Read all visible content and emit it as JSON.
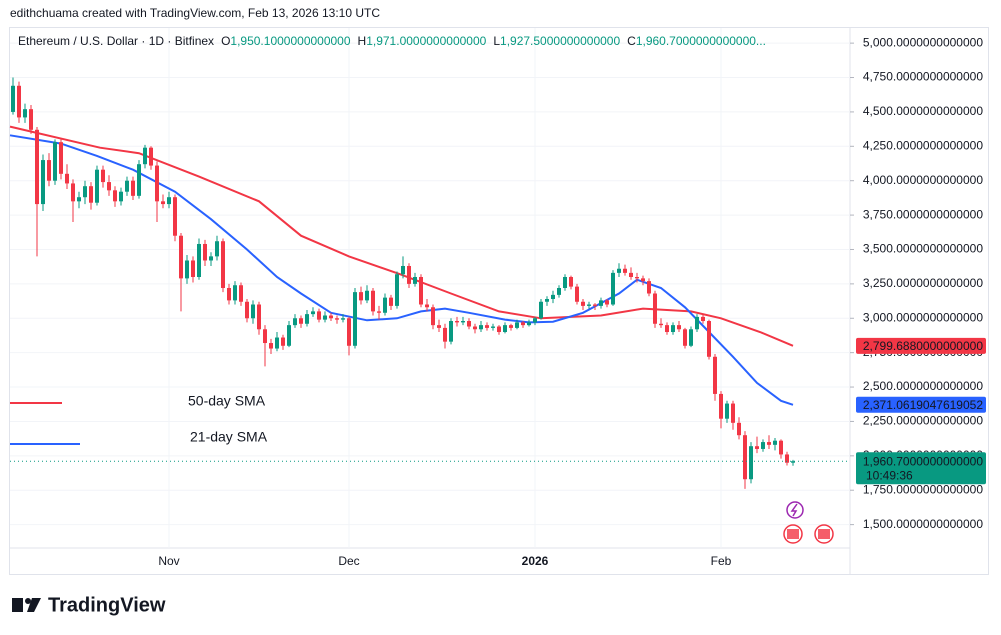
{
  "chart_data": {
    "type": "candlestick",
    "attribution": "edithchuama created with TradingView.com, Feb 13, 2026 13:10 UTC",
    "title": "Ethereum / U.S. Dollar · 1D · Bitfinex",
    "ohlc_header": [
      {
        "label": "O",
        "value": "1,950.1000000000000"
      },
      {
        "label": "H",
        "value": "1,971.0000000000000"
      },
      {
        "label": "L",
        "value": "1,927.5000000000000"
      },
      {
        "label": "C",
        "value": "1,960.7000000000000..."
      }
    ],
    "logo": "TradingView",
    "up_color": "#089981",
    "down_color": "#f23645",
    "grid": true,
    "xlim": [
      -0.5,
      139.5
    ],
    "xticks": [
      {
        "value": 26,
        "label": "Nov"
      },
      {
        "value": 56,
        "label": "Dec"
      },
      {
        "value": 87,
        "label": "2026"
      },
      {
        "value": 118,
        "label": "Feb"
      }
    ],
    "ylim": [
      1330,
      5110
    ],
    "yticks": [
      {
        "value": 5000,
        "label": "5,000.0000000000000"
      },
      {
        "value": 4750,
        "label": "4,750.0000000000000"
      },
      {
        "value": 4500,
        "label": "4,500.0000000000000"
      },
      {
        "value": 4250,
        "label": "4,250.0000000000000"
      },
      {
        "value": 4000,
        "label": "4,000.0000000000000"
      },
      {
        "value": 3750,
        "label": "3,750.0000000000000"
      },
      {
        "value": 3500,
        "label": "3,500.0000000000000"
      },
      {
        "value": 3250,
        "label": "3,250.0000000000000"
      },
      {
        "value": 3000,
        "label": "3,000.0000000000000"
      },
      {
        "value": 2750,
        "label": "2,750.0000000000000"
      },
      {
        "value": 2500,
        "label": "2,500.0000000000000"
      },
      {
        "value": 2250,
        "label": "2,250.0000000000000"
      },
      {
        "value": 2000,
        "label": "2,000.0000000000000"
      },
      {
        "value": 1750,
        "label": "1,750.0000000000000"
      },
      {
        "value": 1500,
        "label": "1,500.0000000000000"
      }
    ],
    "candles": [
      [
        4500,
        4750,
        4480,
        4690
      ],
      [
        4690,
        4720,
        4420,
        4460
      ],
      [
        4460,
        4560,
        4420,
        4520
      ],
      [
        4520,
        4550,
        4340,
        4370
      ],
      [
        4370,
        4390,
        3450,
        3830
      ],
      [
        3830,
        4190,
        3780,
        4150
      ],
      [
        4150,
        4200,
        3960,
        4000
      ],
      [
        4000,
        4300,
        3970,
        4280
      ],
      [
        4280,
        4300,
        4010,
        4050
      ],
      [
        4050,
        4120,
        3940,
        3980
      ],
      [
        3980,
        4010,
        3700,
        3850
      ],
      [
        3850,
        3920,
        3800,
        3880
      ],
      [
        3880,
        4000,
        3830,
        3960
      ],
      [
        3960,
        3990,
        3790,
        3840
      ],
      [
        3840,
        4110,
        3820,
        4080
      ],
      [
        4080,
        4110,
        3950,
        3990
      ],
      [
        3990,
        4040,
        3890,
        3930
      ],
      [
        3930,
        3960,
        3810,
        3850
      ],
      [
        3850,
        3950,
        3820,
        3920
      ],
      [
        3920,
        4030,
        3890,
        4000
      ],
      [
        4000,
        4030,
        3860,
        3890
      ],
      [
        3890,
        4150,
        3870,
        4120
      ],
      [
        4120,
        4260,
        4090,
        4240
      ],
      [
        4240,
        4250,
        4080,
        4110
      ],
      [
        4110,
        4140,
        3700,
        3850
      ],
      [
        3850,
        3900,
        3800,
        3830
      ],
      [
        3830,
        3920,
        3800,
        3880
      ],
      [
        3880,
        3900,
        3560,
        3600
      ],
      [
        3600,
        3620,
        3050,
        3290
      ],
      [
        3290,
        3460,
        3250,
        3420
      ],
      [
        3420,
        3450,
        3260,
        3300
      ],
      [
        3300,
        3580,
        3280,
        3540
      ],
      [
        3540,
        3570,
        3380,
        3420
      ],
      [
        3420,
        3480,
        3380,
        3450
      ],
      [
        3450,
        3600,
        3420,
        3560
      ],
      [
        3560,
        3580,
        3190,
        3220
      ],
      [
        3220,
        3250,
        3100,
        3130
      ],
      [
        3130,
        3270,
        3100,
        3240
      ],
      [
        3240,
        3260,
        3090,
        3120
      ],
      [
        3120,
        3140,
        2970,
        3000
      ],
      [
        3000,
        3130,
        2960,
        3100
      ],
      [
        3100,
        3120,
        2880,
        2920
      ],
      [
        2920,
        2950,
        2650,
        2820
      ],
      [
        2820,
        2850,
        2740,
        2780
      ],
      [
        2780,
        2900,
        2760,
        2860
      ],
      [
        2860,
        2880,
        2770,
        2800
      ],
      [
        2800,
        2980,
        2790,
        2950
      ],
      [
        2950,
        3030,
        2930,
        3000
      ],
      [
        3000,
        3020,
        2930,
        2960
      ],
      [
        2960,
        3060,
        2940,
        3030
      ],
      [
        3030,
        3080,
        3010,
        3050
      ],
      [
        3050,
        3070,
        2970,
        2990
      ],
      [
        2990,
        3050,
        2970,
        3020
      ],
      [
        3020,
        3040,
        2980,
        3000
      ],
      [
        3000,
        3020,
        2960,
        2990
      ],
      [
        2990,
        3030,
        2970,
        3000
      ],
      [
        3000,
        3010,
        2730,
        2800
      ],
      [
        2800,
        3220,
        2780,
        3190
      ],
      [
        3190,
        3230,
        3100,
        3130
      ],
      [
        3130,
        3240,
        3110,
        3200
      ],
      [
        3200,
        3220,
        3020,
        3050
      ],
      [
        3050,
        3090,
        2990,
        3040
      ],
      [
        3040,
        3180,
        3020,
        3150
      ],
      [
        3150,
        3170,
        3060,
        3090
      ],
      [
        3090,
        3340,
        3070,
        3320
      ],
      [
        3320,
        3450,
        3290,
        3380
      ],
      [
        3380,
        3400,
        3220,
        3250
      ],
      [
        3250,
        3330,
        3230,
        3300
      ],
      [
        3300,
        3320,
        3080,
        3100
      ],
      [
        3100,
        3140,
        3050,
        3080
      ],
      [
        3080,
        3100,
        2920,
        2950
      ],
      [
        2950,
        2990,
        2900,
        2930
      ],
      [
        2930,
        2960,
        2780,
        2830
      ],
      [
        2830,
        3000,
        2810,
        2980
      ],
      [
        2980,
        3010,
        2940,
        2970
      ],
      [
        2970,
        3010,
        2950,
        2980
      ],
      [
        2980,
        3000,
        2920,
        2940
      ],
      [
        2940,
        2960,
        2890,
        2920
      ],
      [
        2920,
        2980,
        2900,
        2950
      ],
      [
        2950,
        2970,
        2910,
        2930
      ],
      [
        2930,
        2960,
        2910,
        2940
      ],
      [
        2940,
        2950,
        2880,
        2900
      ],
      [
        2900,
        2970,
        2890,
        2950
      ],
      [
        2950,
        2960,
        2910,
        2930
      ],
      [
        2930,
        2990,
        2920,
        2970
      ],
      [
        2970,
        2980,
        2930,
        2950
      ],
      [
        2950,
        2990,
        2940,
        2970
      ],
      [
        2970,
        3010,
        2950,
        3000
      ],
      [
        3000,
        3140,
        2990,
        3120
      ],
      [
        3120,
        3160,
        3090,
        3140
      ],
      [
        3140,
        3200,
        3110,
        3170
      ],
      [
        3170,
        3240,
        3150,
        3220
      ],
      [
        3220,
        3320,
        3200,
        3300
      ],
      [
        3300,
        3310,
        3210,
        3230
      ],
      [
        3230,
        3250,
        3100,
        3120
      ],
      [
        3120,
        3140,
        3060,
        3090
      ],
      [
        3090,
        3120,
        3070,
        3100
      ],
      [
        3100,
        3110,
        3060,
        3090
      ],
      [
        3090,
        3150,
        3070,
        3130
      ],
      [
        3130,
        3140,
        3080,
        3100
      ],
      [
        3100,
        3350,
        3090,
        3330
      ],
      [
        3330,
        3400,
        3300,
        3360
      ],
      [
        3360,
        3390,
        3310,
        3330
      ],
      [
        3330,
        3370,
        3280,
        3300
      ],
      [
        3300,
        3330,
        3260,
        3290
      ],
      [
        3290,
        3310,
        3240,
        3270
      ],
      [
        3270,
        3290,
        3160,
        3180
      ],
      [
        3180,
        3200,
        2930,
        2960
      ],
      [
        2960,
        3000,
        2930,
        2950
      ],
      [
        2950,
        2970,
        2880,
        2900
      ],
      [
        2900,
        2970,
        2880,
        2950
      ],
      [
        2950,
        2980,
        2900,
        2920
      ],
      [
        2920,
        2930,
        2780,
        2800
      ],
      [
        2800,
        2940,
        2790,
        2920
      ],
      [
        2920,
        3030,
        2900,
        3010
      ],
      [
        3010,
        3030,
        2960,
        2980
      ],
      [
        2980,
        2990,
        2700,
        2720
      ],
      [
        2720,
        2740,
        2400,
        2450
      ],
      [
        2450,
        2470,
        2200,
        2270
      ],
      [
        2270,
        2400,
        2240,
        2380
      ],
      [
        2380,
        2400,
        2190,
        2240
      ],
      [
        2240,
        2280,
        2120,
        2150
      ],
      [
        2150,
        2180,
        1760,
        1830
      ],
      [
        1830,
        2100,
        1800,
        2070
      ],
      [
        2070,
        2140,
        2020,
        2050
      ],
      [
        2050,
        2120,
        2030,
        2100
      ],
      [
        2100,
        2150,
        2050,
        2080
      ],
      [
        2080,
        2130,
        2040,
        2110
      ],
      [
        2110,
        2120,
        1980,
        2010
      ],
      [
        2010,
        2030,
        1930,
        1950
      ],
      [
        1950.1,
        1971,
        1927.5,
        1960.7
      ]
    ],
    "last_price": {
      "value": 1960.7,
      "label": "1,960.7000000000000",
      "countdown": "10:49:36",
      "color": "#089981"
    },
    "series": [
      {
        "name": "50-day SMA",
        "color": "#f23645",
        "tag": "2,799.6880000000000",
        "x": [
          -0.5,
          14.5,
          21,
          31,
          41,
          48,
          56,
          64.5,
          73,
          81,
          88,
          98,
          105,
          113,
          118,
          124.5,
          130
        ],
        "values": [
          4393,
          4240,
          4200,
          4030,
          3850,
          3600,
          3450,
          3320,
          3180,
          3050,
          3000,
          3020,
          3070,
          3050,
          3000,
          2900,
          2799.688
        ]
      },
      {
        "name": "21-day SMA",
        "color": "#2962ff",
        "tag": "2,371.0619047619052",
        "x": [
          -0.5,
          8,
          14,
          20,
          27,
          33,
          39,
          44,
          48,
          53,
          59,
          64,
          68,
          72,
          76,
          82,
          86,
          90,
          95,
          101,
          104,
          108,
          112,
          116,
          120,
          124,
          128,
          130
        ],
        "values": [
          4330,
          4270,
          4180,
          4080,
          3920,
          3720,
          3500,
          3300,
          3180,
          3040,
          2985,
          3000,
          3050,
          3070,
          3040,
          2990,
          2970,
          2975,
          3040,
          3180,
          3280,
          3220,
          3080,
          2900,
          2720,
          2530,
          2400,
          2371.061904761905
        ]
      }
    ]
  }
}
